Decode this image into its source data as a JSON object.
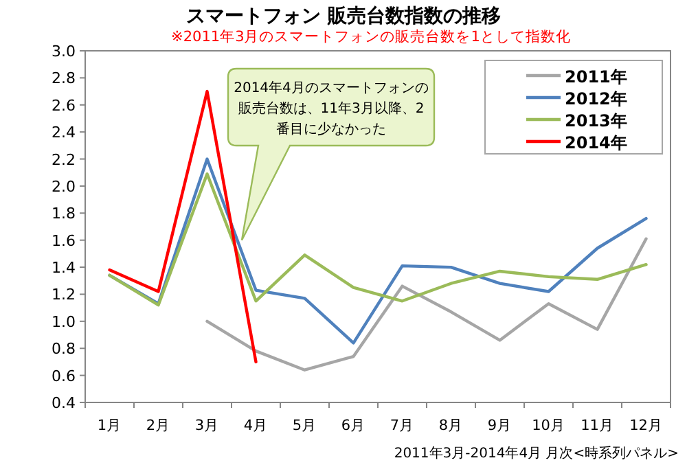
{
  "chart_data": {
    "type": "line",
    "title": "スマートフォン 販売台数指数の推移",
    "subtitle": "※2011年3月のスマートフォンの販売台数を1として指数化",
    "categories": [
      "1月",
      "2月",
      "3月",
      "4月",
      "5月",
      "6月",
      "7月",
      "8月",
      "9月",
      "10月",
      "11月",
      "12月"
    ],
    "series": [
      {
        "name": "2011年",
        "color": "#a6a6a6",
        "values": [
          null,
          null,
          1.0,
          0.78,
          0.64,
          0.74,
          1.26,
          1.07,
          0.86,
          1.13,
          0.94,
          1.61
        ]
      },
      {
        "name": "2012年",
        "color": "#4f81bd",
        "values": [
          1.34,
          1.13,
          2.2,
          1.23,
          1.17,
          0.84,
          1.41,
          1.4,
          1.28,
          1.22,
          1.54,
          1.76
        ]
      },
      {
        "name": "2013年",
        "color": "#9bbb59",
        "values": [
          1.34,
          1.12,
          2.09,
          1.15,
          1.49,
          1.25,
          1.15,
          1.28,
          1.37,
          1.33,
          1.31,
          1.42
        ]
      },
      {
        "name": "2014年",
        "color": "#ff0000",
        "values": [
          1.38,
          1.22,
          2.7,
          0.7,
          null,
          null,
          null,
          null,
          null,
          null,
          null,
          null
        ]
      }
    ],
    "ylim": [
      0.4,
      3.0
    ],
    "yticks": [
      {
        "value": 0.4,
        "label": "0.4"
      },
      {
        "value": 0.6,
        "label": "0.6"
      },
      {
        "value": 0.8,
        "label": "0.8"
      },
      {
        "value": 1.0,
        "label": "1.0"
      },
      {
        "value": 1.2,
        "label": "1.2"
      },
      {
        "value": 1.4,
        "label": "1.4"
      },
      {
        "value": 1.6,
        "label": "1.6"
      },
      {
        "value": 1.8,
        "label": "1.8"
      },
      {
        "value": 2.0,
        "label": "2.0"
      },
      {
        "value": 2.2,
        "label": "2.2"
      },
      {
        "value": 2.4,
        "label": "2.4"
      },
      {
        "value": 2.6,
        "label": "2.6"
      },
      {
        "value": 2.8,
        "label": "2.8"
      },
      {
        "value": 3.0,
        "label": "3.0"
      }
    ],
    "grid": false,
    "legend": "top right",
    "marker": "none",
    "line_style": "solid",
    "annotations": [
      "2014年4月のスマートフォンの販売台数は、11年3月以降、2番目に少なかった",
      "2011年3月-2014年4月 月次<時系列パネル>"
    ]
  }
}
